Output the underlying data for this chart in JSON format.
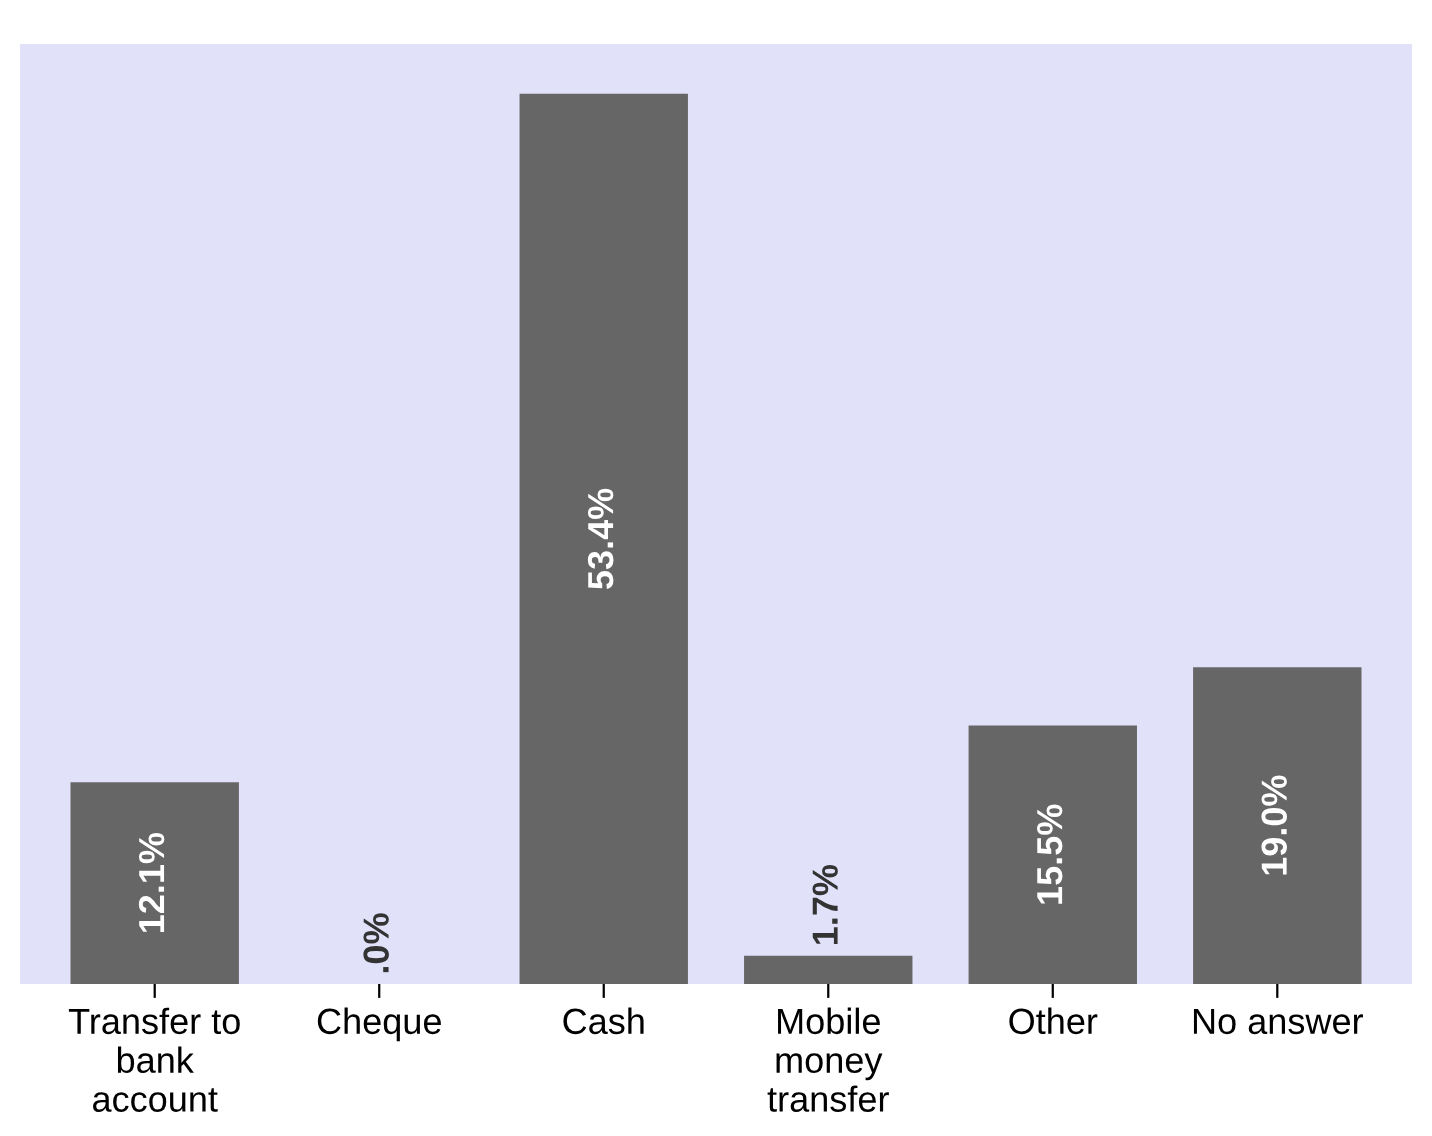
{
  "chart_data": {
    "type": "bar",
    "categories": [
      "Transfer to\nbank\naccount",
      "Cheque",
      "Cash",
      "Mobile\nmoney\ntransfer",
      "Other",
      "No answer"
    ],
    "values": [
      12.1,
      0,
      53.4,
      1.7,
      15.5,
      19.0
    ],
    "value_labels": [
      "12.1%",
      ".0%",
      "53.4%",
      "1.7%",
      "15.5%",
      "19.0%"
    ],
    "color": "#666666",
    "grid": false,
    "legend": false
  }
}
